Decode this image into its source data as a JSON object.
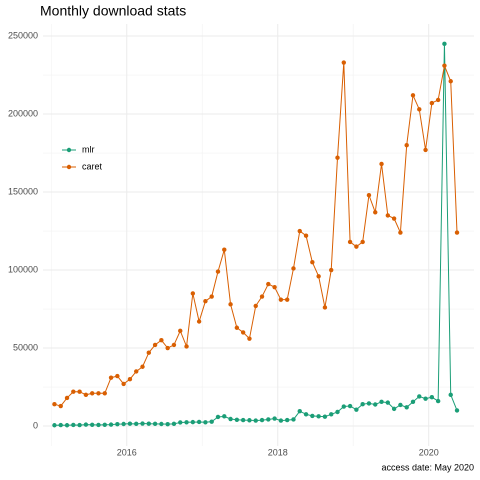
{
  "chart_data": {
    "type": "line",
    "title": "Monthly download stats",
    "caption": "access date: May 2020",
    "x": [
      "2015-01",
      "2015-02",
      "2015-03",
      "2015-04",
      "2015-05",
      "2015-06",
      "2015-07",
      "2015-08",
      "2015-09",
      "2015-10",
      "2015-11",
      "2015-12",
      "2016-01",
      "2016-02",
      "2016-03",
      "2016-04",
      "2016-05",
      "2016-06",
      "2016-07",
      "2016-08",
      "2016-09",
      "2016-10",
      "2016-11",
      "2016-12",
      "2017-01",
      "2017-02",
      "2017-03",
      "2017-04",
      "2017-05",
      "2017-06",
      "2017-07",
      "2017-08",
      "2017-09",
      "2017-10",
      "2017-11",
      "2017-12",
      "2018-01",
      "2018-02",
      "2018-03",
      "2018-04",
      "2018-05",
      "2018-06",
      "2018-07",
      "2018-08",
      "2018-09",
      "2018-10",
      "2018-11",
      "2018-12",
      "2019-01",
      "2019-02",
      "2019-03",
      "2019-04",
      "2019-05",
      "2019-06",
      "2019-07",
      "2019-08",
      "2019-09",
      "2019-10",
      "2019-11",
      "2019-12",
      "2020-01",
      "2020-02",
      "2020-03",
      "2020-04",
      "2020-05"
    ],
    "series": [
      {
        "name": "mlr",
        "color": "#1b9e77",
        "values": [
          500,
          600,
          500,
          700,
          600,
          900,
          800,
          700,
          800,
          900,
          1200,
          1300,
          1500,
          1400,
          1600,
          1500,
          1400,
          1300,
          1200,
          1400,
          2300,
          2400,
          2500,
          2600,
          2400,
          2800,
          5800,
          6200,
          4500,
          4000,
          3800,
          3700,
          3500,
          3800,
          4200,
          4800,
          3500,
          3800,
          4200,
          9500,
          7500,
          6500,
          6200,
          6000,
          7500,
          9000,
          12500,
          12800,
          10500,
          14000,
          14500,
          13800,
          15500,
          15000,
          11000,
          13500,
          12000,
          15500,
          19000,
          17500,
          18500,
          16000,
          245000,
          20000,
          10000
        ]
      },
      {
        "name": "caret",
        "color": "#d95f02",
        "values": [
          14000,
          12800,
          18000,
          22000,
          22000,
          20000,
          21000,
          21000,
          21000,
          31000,
          32000,
          27000,
          30000,
          35000,
          38000,
          47000,
          52000,
          55000,
          50000,
          52000,
          61000,
          51000,
          85000,
          67000,
          80000,
          83000,
          99000,
          113000,
          78000,
          63000,
          60000,
          56000,
          77000,
          83000,
          91000,
          89000,
          81000,
          81000,
          101000,
          125000,
          122000,
          105000,
          96000,
          76000,
          100000,
          172000,
          233000,
          118000,
          115000,
          118000,
          148000,
          137000,
          168000,
          135000,
          133000,
          124000,
          180000,
          212000,
          203000,
          177000,
          207000,
          209000,
          231000,
          221000,
          124000
        ]
      }
    ],
    "xlim": [
      2014.89,
      2020.6
    ],
    "xticks": [
      2016,
      2018,
      2020
    ],
    "ylim": [
      -12800,
      257700
    ],
    "yticks": [
      0,
      50000,
      100000,
      150000,
      200000,
      250000
    ],
    "grid": true,
    "legend": "left"
  }
}
